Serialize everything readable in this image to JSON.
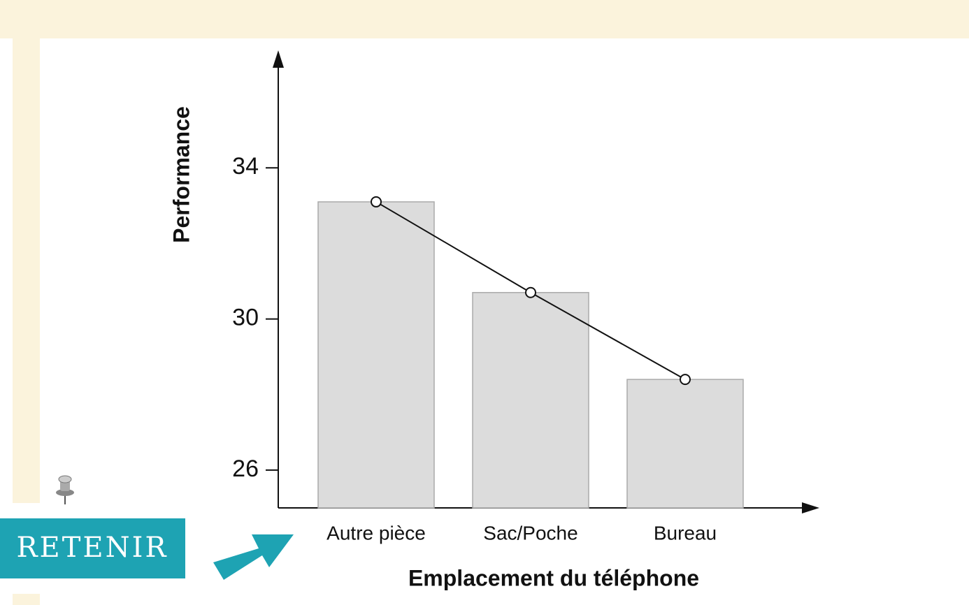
{
  "chart_data": {
    "type": "bar",
    "categories": [
      "Autre pièce",
      "Sac/Poche",
      "Bureau"
    ],
    "values": [
      33.1,
      30.7,
      28.4
    ],
    "color": "#dcdcdc",
    "line": true,
    "ylim": [
      25,
      37
    ],
    "yticks": [
      26,
      30,
      34
    ],
    "ylabel": "Performance",
    "xlabel": "Emplacement du téléphone"
  },
  "badge": "RETENIR"
}
